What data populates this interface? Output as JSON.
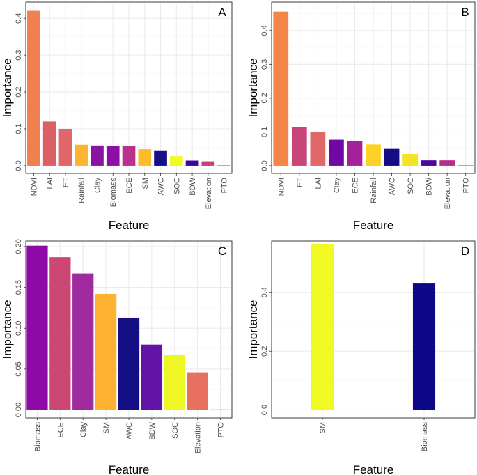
{
  "figure": {
    "xlabel": "Feature",
    "ylabel": "Importance"
  },
  "chart_data": [
    {
      "panel": "A",
      "type": "bar",
      "title": "A",
      "xlabel": "Feature",
      "ylabel": "Importance",
      "ylim": [
        0,
        0.44
      ],
      "yticks": [
        0.0,
        0.1,
        0.2,
        0.3,
        0.4
      ],
      "ytick_labels": [
        "0.0",
        "0.1",
        "0.2",
        "0.3",
        "0.4"
      ],
      "categories": [
        "NDVI",
        "LAI",
        "ET",
        "Rainfall",
        "Clay",
        "Biomass",
        "ECE",
        "SM",
        "AWC",
        "SOC",
        "BDW",
        "Elevation",
        "PTO"
      ],
      "values": [
        0.42,
        0.12,
        0.1,
        0.057,
        0.055,
        0.053,
        0.053,
        0.045,
        0.04,
        0.026,
        0.014,
        0.012,
        0.0
      ],
      "colors": [
        "#f0804f",
        "#dc5f66",
        "#e0666a",
        "#fdb42f",
        "#8a13a3",
        "#8c0ea4",
        "#b8328b",
        "#febc2b",
        "#170f88",
        "#f0f921",
        "#3b0897",
        "#c93f7a",
        "#ee7a55"
      ]
    },
    {
      "panel": "B",
      "type": "bar",
      "title": "B",
      "xlabel": "Feature",
      "ylabel": "Importance",
      "ylim": [
        0,
        0.48
      ],
      "yticks": [
        0.0,
        0.1,
        0.2,
        0.3,
        0.4
      ],
      "ytick_labels": [
        "0.0",
        "0.1",
        "0.2",
        "0.3",
        "0.4"
      ],
      "categories": [
        "NDVI",
        "ET",
        "LAI",
        "Clay",
        "ECE",
        "Rainfall",
        "AWC",
        "SOC",
        "BDW",
        "Elevation",
        "PTO"
      ],
      "values": [
        0.456,
        0.115,
        0.1,
        0.077,
        0.073,
        0.063,
        0.05,
        0.035,
        0.016,
        0.016,
        0.0
      ],
      "colors": [
        "#f38549",
        "#c94479",
        "#e0676a",
        "#7108a4",
        "#a5219a",
        "#fed124",
        "#140d84",
        "#f4e325",
        "#4a079a",
        "#b42f8c",
        "#ee7a55"
      ]
    },
    {
      "panel": "C",
      "type": "bar",
      "title": "C",
      "xlabel": "Feature",
      "ylabel": "Importance",
      "ylim": [
        0,
        0.205
      ],
      "yticks": [
        0.0,
        0.05,
        0.1,
        0.15,
        0.2
      ],
      "ytick_labels": [
        "0.00",
        "0.05",
        "0.10",
        "0.15",
        "0.20"
      ],
      "categories": [
        "Biomass",
        "ECE",
        "Clay",
        "SM",
        "AWC",
        "BDW",
        "SOC",
        "Elevation",
        "PTO"
      ],
      "values": [
        0.201,
        0.187,
        0.167,
        0.142,
        0.113,
        0.08,
        0.067,
        0.046,
        0.0
      ],
      "colors": [
        "#8e0aa6",
        "#cc4776",
        "#a02aa0",
        "#fdb232",
        "#150f85",
        "#6313a5",
        "#eef723",
        "#e8705e",
        "#ee7a55"
      ]
    },
    {
      "panel": "D",
      "type": "bar",
      "title": "D",
      "xlabel": "Feature",
      "ylabel": "Importance",
      "ylim": [
        0,
        0.57
      ],
      "yticks": [
        0.0,
        0.2,
        0.4
      ],
      "ytick_labels": [
        "0.0",
        "0.2",
        "0.4"
      ],
      "categories": [
        "SM",
        "Biomass"
      ],
      "values": [
        0.565,
        0.43
      ],
      "colors": [
        "#f0f921",
        "#0d0887"
      ]
    }
  ]
}
